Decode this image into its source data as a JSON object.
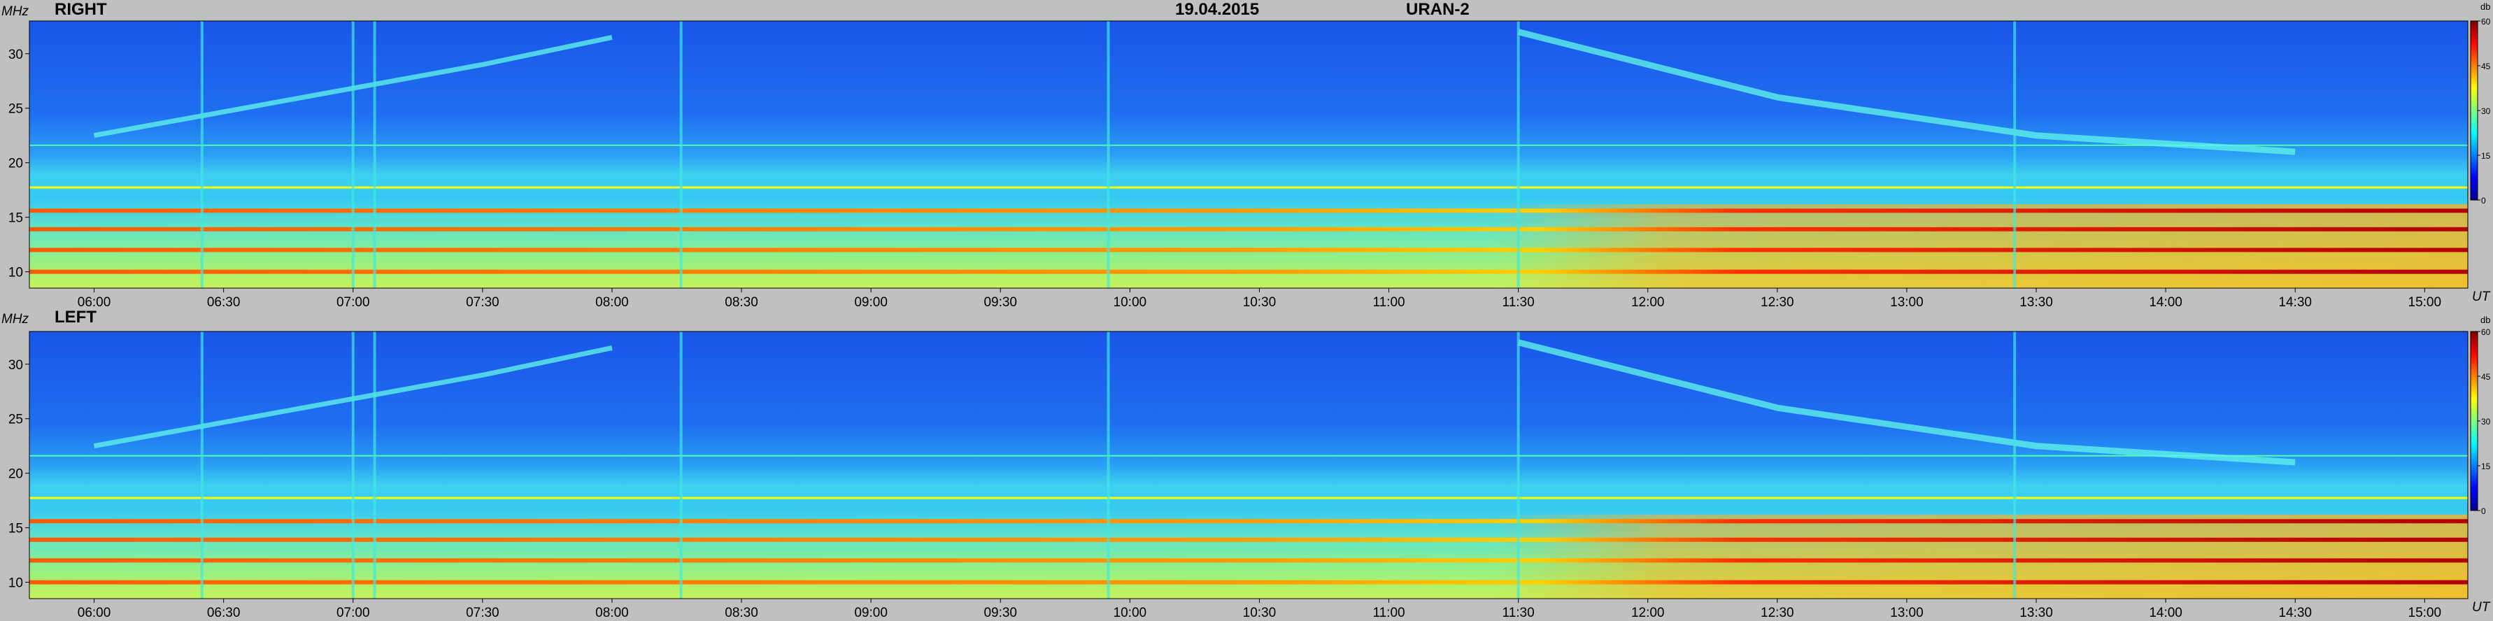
{
  "header": {
    "date": "19.04.2015",
    "instrument": "URAN-2"
  },
  "panels": [
    {
      "id": "right",
      "label": "RIGHT"
    },
    {
      "id": "left",
      "label": "LEFT"
    }
  ],
  "axes": {
    "y_unit": "MHz",
    "x_unit": "UT",
    "colorbar_unit": "db"
  },
  "chart_data": [
    {
      "type": "heatmap",
      "panel": "RIGHT",
      "x_ticks": [
        "06:00",
        "06:30",
        "07:00",
        "07:30",
        "08:00",
        "08:30",
        "09:00",
        "09:30",
        "10:00",
        "10:30",
        "11:00",
        "11:30",
        "12:00",
        "12:30",
        "13:00",
        "13:30",
        "14:00",
        "14:30",
        "15:00"
      ],
      "y_ticks": [
        10,
        15,
        20,
        25,
        30
      ],
      "xlim_ut": [
        "05:45",
        "15:10"
      ],
      "ylim_mhz": [
        8.5,
        33
      ],
      "colorbar_ticks": [
        0,
        15,
        30,
        45,
        60
      ],
      "colorbar_range_db": [
        0,
        60
      ],
      "colormap": [
        "#00008f",
        "#0000ff",
        "#007fff",
        "#00ffff",
        "#7fff7f",
        "#ffff00",
        "#ff7f00",
        "#ff0000",
        "#7f0000"
      ],
      "features": {
        "hot_bands_mhz": [
          15.6,
          13.9,
          12.0,
          10.0
        ],
        "rising_drift_mhz": [
          [
            6.0,
            22.5
          ],
          [
            7.5,
            29.0
          ],
          [
            8.0,
            31.5
          ]
        ],
        "falling_drift_mhz": [
          [
            11.5,
            32.0
          ],
          [
            12.5,
            26.0
          ],
          [
            13.5,
            22.5
          ],
          [
            14.5,
            21.0
          ]
        ],
        "vertical_bursts_ut": [
          "06:25",
          "07:00",
          "07:05",
          "08:16",
          "09:55",
          "11:30",
          "13:25"
        ]
      }
    },
    {
      "type": "heatmap",
      "panel": "LEFT",
      "x_ticks": [
        "06:00",
        "06:30",
        "07:00",
        "07:30",
        "08:00",
        "08:30",
        "09:00",
        "09:30",
        "10:00",
        "10:30",
        "11:00",
        "11:30",
        "12:00",
        "12:30",
        "13:00",
        "13:30",
        "14:00",
        "14:30",
        "15:00"
      ],
      "y_ticks": [
        10,
        15,
        20,
        25,
        30
      ],
      "xlim_ut": [
        "05:45",
        "15:10"
      ],
      "ylim_mhz": [
        8.5,
        33
      ],
      "colorbar_ticks": [
        0,
        15,
        30,
        45,
        60
      ],
      "colorbar_range_db": [
        0,
        60
      ],
      "colormap": [
        "#00008f",
        "#0000ff",
        "#007fff",
        "#00ffff",
        "#7fff7f",
        "#ffff00",
        "#ff7f00",
        "#ff0000",
        "#7f0000"
      ],
      "features": {
        "hot_bands_mhz": [
          15.6,
          13.9,
          12.0,
          10.0
        ],
        "rising_drift_mhz": [
          [
            6.0,
            22.5
          ],
          [
            7.5,
            29.0
          ],
          [
            8.0,
            31.5
          ]
        ],
        "falling_drift_mhz": [
          [
            11.5,
            32.0
          ],
          [
            12.5,
            26.0
          ],
          [
            13.5,
            22.5
          ],
          [
            14.5,
            21.0
          ]
        ],
        "vertical_bursts_ut": [
          "06:25",
          "07:00",
          "07:05",
          "08:16",
          "09:55",
          "11:30",
          "13:25"
        ]
      }
    }
  ]
}
